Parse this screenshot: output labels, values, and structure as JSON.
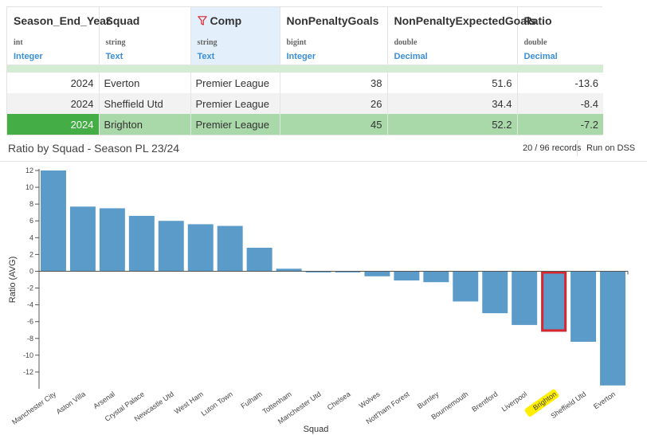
{
  "table": {
    "columns": [
      {
        "name": "Season_End_Year",
        "type": "int",
        "meaning": "Integer",
        "filtered": false
      },
      {
        "name": "Squad",
        "type": "string",
        "meaning": "Text",
        "filtered": false
      },
      {
        "name": "Comp",
        "type": "string",
        "meaning": "Text",
        "filtered": true
      },
      {
        "name": "NonPenaltyGoals",
        "type": "bigint",
        "meaning": "Integer",
        "filtered": false
      },
      {
        "name": "NonPenaltyExpectedGoals",
        "type": "double",
        "meaning": "Decimal",
        "filtered": false
      },
      {
        "name": "Ratio",
        "type": "double",
        "meaning": "Decimal",
        "filtered": false
      }
    ],
    "rows": [
      [
        "2024",
        "Everton",
        "Premier League",
        "38",
        "51.6",
        "-13.6"
      ],
      [
        "2024",
        "Sheffield Utd",
        "Premier League",
        "26",
        "34.4",
        "-8.4"
      ],
      [
        "2024",
        "Brighton",
        "Premier League",
        "45",
        "52.2",
        "-7.2"
      ]
    ],
    "selected_row": 2
  },
  "chart_header": {
    "title": "Ratio by Squad - Season PL 23/24",
    "records": "20 / 96 records",
    "run_label": "Run on DSS"
  },
  "colors": {
    "bar": "#5b9bc9",
    "highlight_border": "#d9272e",
    "label_highlight": "#ffee00",
    "selected_row": "#a9d8a9",
    "selected_first_cell": "#45ad45",
    "filter_header": "#e3f0fc"
  },
  "chart_data": {
    "type": "bar",
    "xlabel": "Squad",
    "ylabel": "Ratio (AVG)",
    "ylim": [
      -14,
      12
    ],
    "yticks": [
      12,
      10,
      8,
      6,
      4,
      2,
      0,
      -2,
      -4,
      -6,
      -8,
      -10,
      -12
    ],
    "grid": false,
    "categories": [
      "Manchester City",
      "Aston Villa",
      "Arsenal",
      "Crystal Palace",
      "Newcastle Utd",
      "West Ham",
      "Luton Town",
      "Fulham",
      "Tottenham",
      "Manchester Utd",
      "Chelsea",
      "Wolves",
      "Nott'ham Forest",
      "Burnley",
      "Bournemouth",
      "Brentford",
      "Liverpool",
      "Brighton",
      "Sheffield Utd",
      "Everton"
    ],
    "values": [
      12.0,
      7.7,
      7.5,
      6.6,
      6.0,
      5.6,
      5.4,
      2.8,
      0.3,
      -0.1,
      -0.1,
      -0.6,
      -1.1,
      -1.3,
      -3.6,
      -5.0,
      -6.4,
      -7.2,
      -8.4,
      -13.6
    ],
    "highlighted": "Brighton"
  }
}
